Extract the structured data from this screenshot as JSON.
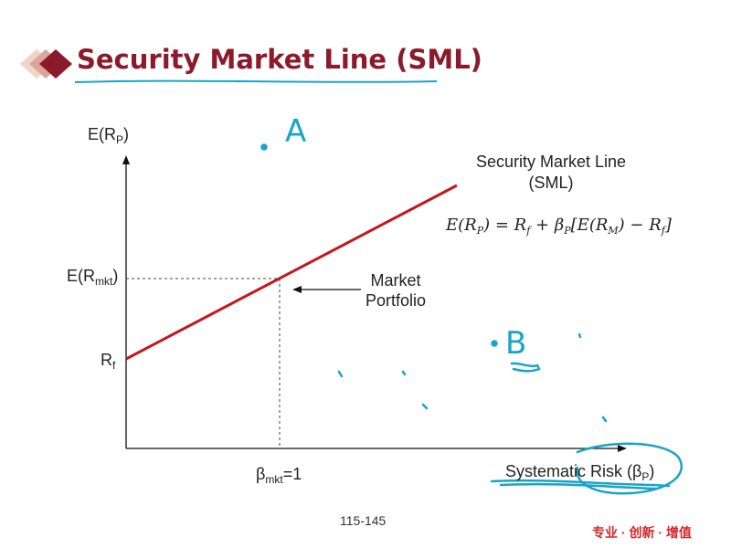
{
  "slide": {
    "title": "Security Market Line (SML)",
    "page_number": "115-145",
    "brand_text": "专业 · 创新 · 增值"
  },
  "diagram": {
    "y_axis_label": {
      "main": "E(R",
      "sub": "P",
      "close": ")"
    },
    "rmkt_label": {
      "main": "E(R",
      "sub": "mkt",
      "close": ")"
    },
    "rf_label": {
      "main": "R",
      "sub": "f"
    },
    "beta_label": {
      "main": "β",
      "sub": "mkt",
      "rest": "=1"
    },
    "x_axis_label": {
      "main": "Systematic Risk (β",
      "sub": "P",
      "close": ")"
    },
    "sml_label_line1": "Security Market Line",
    "sml_label_line2": "(SML)",
    "market_portfolio_line1": "Market",
    "market_portfolio_line2": "Portfolio",
    "formula": {
      "lhs": "E(R",
      "lhs_sub": "P",
      "mid": ") = R",
      "rf_sub": "f",
      "plus_beta": " + β",
      "beta_sub": "P",
      "bracket": "[E(R",
      "m_sub": "M",
      "minus": ") − R",
      "rf2_sub": "f",
      "close": "]"
    },
    "annotations": {
      "point_a": "A",
      "point_b": "B"
    },
    "colors": {
      "sml_line": "#c4161c",
      "title": "#8b1a2a",
      "handwriting": "#1aa3c8",
      "brand": "#d6252a"
    }
  }
}
